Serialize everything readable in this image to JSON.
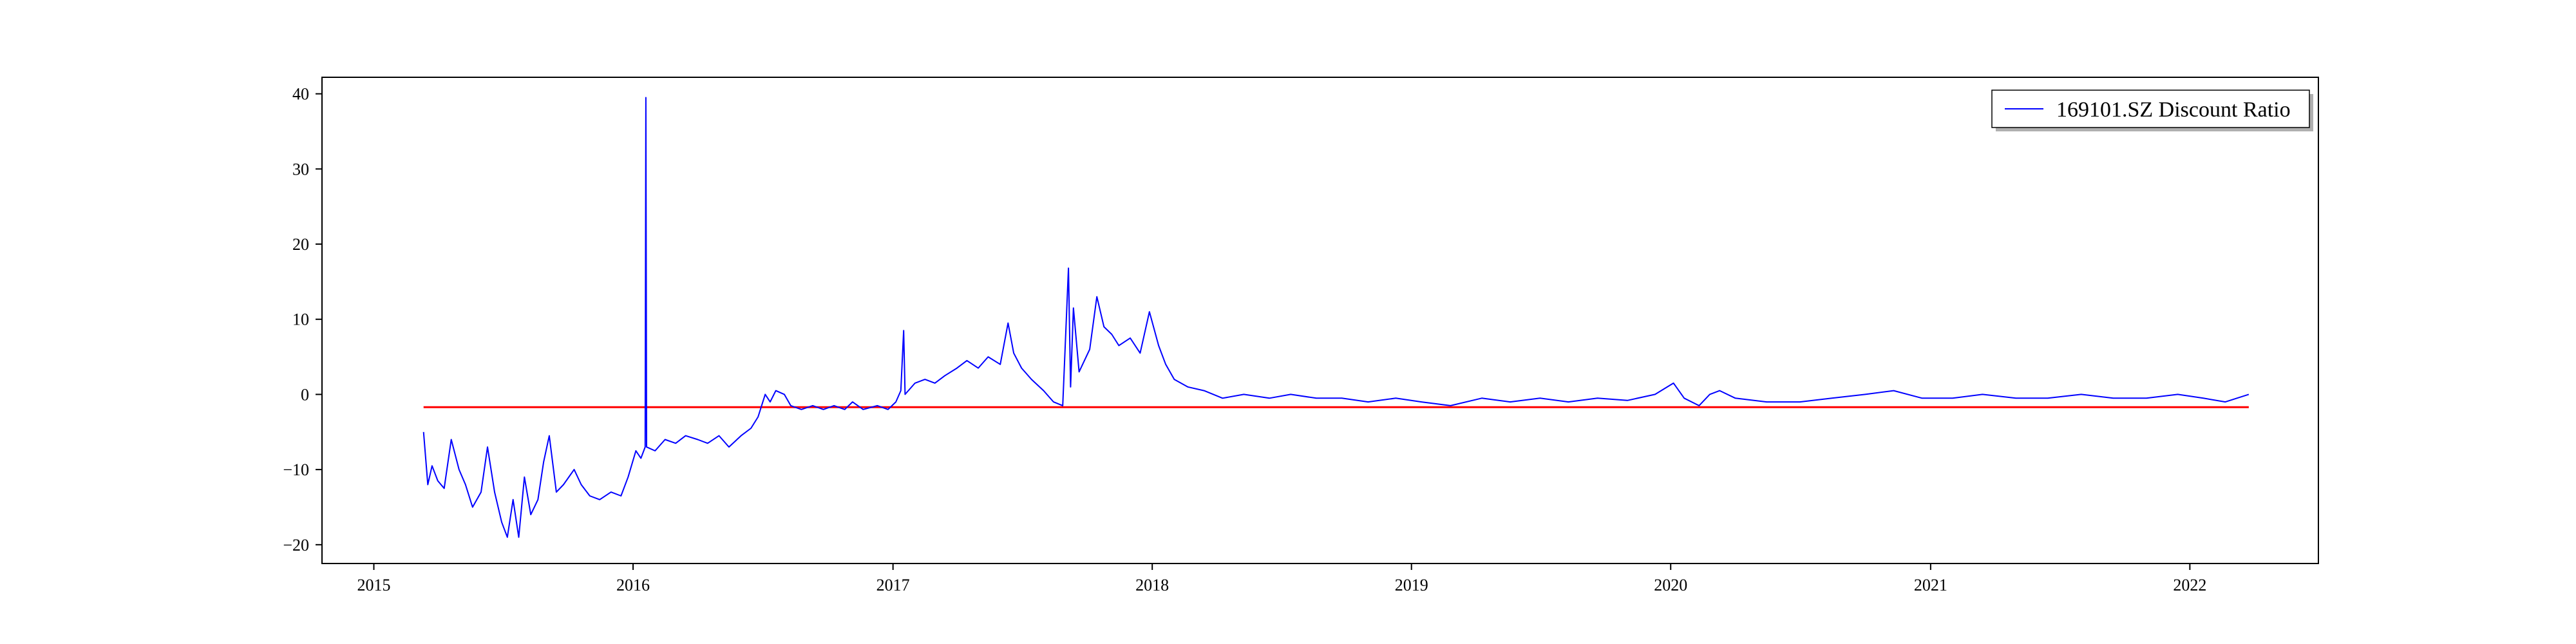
{
  "chart_data": {
    "type": "line",
    "title": "",
    "xlabel": "",
    "ylabel": "",
    "x_range": [
      "2014-10-20",
      "2022-07-01"
    ],
    "ylim": [
      -22.5,
      42.2
    ],
    "x_ticks": [
      "2015",
      "2016",
      "2017",
      "2018",
      "2019",
      "2020",
      "2021",
      "2022"
    ],
    "y_ticks": [
      -20,
      -10,
      0,
      10,
      20,
      30,
      40
    ],
    "grid": false,
    "legend": {
      "position": "top-right",
      "entries": [
        "169101.SZ Discount Ratio"
      ]
    },
    "series": [
      {
        "name": "169101.SZ Discount Ratio",
        "color": "#0000ff",
        "points": [
          [
            "2015-03-12",
            -5.0
          ],
          [
            "2015-03-18",
            -12.0
          ],
          [
            "2015-03-24",
            -9.5
          ],
          [
            "2015-04-01",
            -11.5
          ],
          [
            "2015-04-10",
            -12.5
          ],
          [
            "2015-04-20",
            -6.0
          ],
          [
            "2015-05-01",
            -10.0
          ],
          [
            "2015-05-10",
            -12.0
          ],
          [
            "2015-05-20",
            -15.0
          ],
          [
            "2015-06-01",
            -13.0
          ],
          [
            "2015-06-10",
            -7.0
          ],
          [
            "2015-06-20",
            -13.0
          ],
          [
            "2015-06-30",
            -17.0
          ],
          [
            "2015-07-08",
            -19.0
          ],
          [
            "2015-07-16",
            -14.0
          ],
          [
            "2015-07-24",
            -19.0
          ],
          [
            "2015-08-01",
            -11.0
          ],
          [
            "2015-08-10",
            -16.0
          ],
          [
            "2015-08-20",
            -14.0
          ],
          [
            "2015-08-28",
            -9.0
          ],
          [
            "2015-09-05",
            -5.5
          ],
          [
            "2015-09-15",
            -13.0
          ],
          [
            "2015-09-25",
            -12.0
          ],
          [
            "2015-10-10",
            -10.0
          ],
          [
            "2015-10-20",
            -12.0
          ],
          [
            "2015-11-01",
            -13.5
          ],
          [
            "2015-11-15",
            -14.0
          ],
          [
            "2015-12-01",
            -13.0
          ],
          [
            "2015-12-15",
            -13.5
          ],
          [
            "2015-12-25",
            -11.0
          ],
          [
            "2016-01-05",
            -7.5
          ],
          [
            "2016-01-12",
            -8.5
          ],
          [
            "2016-01-18",
            -7.0
          ],
          [
            "2016-01-19",
            39.5
          ],
          [
            "2016-01-20",
            -7.0
          ],
          [
            "2016-02-01",
            -7.5
          ],
          [
            "2016-02-15",
            -6.0
          ],
          [
            "2016-03-01",
            -6.5
          ],
          [
            "2016-03-15",
            -5.5
          ],
          [
            "2016-04-01",
            -6.0
          ],
          [
            "2016-04-15",
            -6.5
          ],
          [
            "2016-05-01",
            -5.5
          ],
          [
            "2016-05-15",
            -7.0
          ],
          [
            "2016-06-01",
            -5.5
          ],
          [
            "2016-06-15",
            -4.5
          ],
          [
            "2016-06-25",
            -3.0
          ],
          [
            "2016-07-05",
            0.0
          ],
          [
            "2016-07-12",
            -1.0
          ],
          [
            "2016-07-20",
            0.5
          ],
          [
            "2016-08-01",
            0.0
          ],
          [
            "2016-08-10",
            -1.5
          ],
          [
            "2016-08-25",
            -2.0
          ],
          [
            "2016-09-10",
            -1.5
          ],
          [
            "2016-09-25",
            -2.0
          ],
          [
            "2016-10-10",
            -1.5
          ],
          [
            "2016-10-25",
            -2.0
          ],
          [
            "2016-11-05",
            -1.0
          ],
          [
            "2016-11-20",
            -2.0
          ],
          [
            "2016-12-10",
            -1.5
          ],
          [
            "2016-12-25",
            -2.0
          ],
          [
            "2017-01-05",
            -1.0
          ],
          [
            "2017-01-12",
            0.5
          ],
          [
            "2017-01-16",
            8.5
          ],
          [
            "2017-01-18",
            0.0
          ],
          [
            "2017-02-01",
            1.5
          ],
          [
            "2017-02-15",
            2.0
          ],
          [
            "2017-03-01",
            1.5
          ],
          [
            "2017-03-15",
            2.5
          ],
          [
            "2017-04-01",
            3.5
          ],
          [
            "2017-04-15",
            4.5
          ],
          [
            "2017-05-01",
            3.5
          ],
          [
            "2017-05-15",
            5.0
          ],
          [
            "2017-06-01",
            4.0
          ],
          [
            "2017-06-12",
            9.5
          ],
          [
            "2017-06-20",
            5.5
          ],
          [
            "2017-07-01",
            3.5
          ],
          [
            "2017-07-15",
            2.0
          ],
          [
            "2017-08-01",
            0.5
          ],
          [
            "2017-08-15",
            -1.0
          ],
          [
            "2017-08-28",
            -1.5
          ],
          [
            "2017-09-05",
            16.8
          ],
          [
            "2017-09-08",
            1.0
          ],
          [
            "2017-09-12",
            11.5
          ],
          [
            "2017-09-20",
            3.0
          ],
          [
            "2017-10-05",
            6.0
          ],
          [
            "2017-10-15",
            13.0
          ],
          [
            "2017-10-25",
            9.0
          ],
          [
            "2017-11-05",
            8.0
          ],
          [
            "2017-11-15",
            6.5
          ],
          [
            "2017-12-01",
            7.5
          ],
          [
            "2017-12-15",
            5.5
          ],
          [
            "2017-12-28",
            11.0
          ],
          [
            "2018-01-10",
            6.5
          ],
          [
            "2018-01-20",
            4.0
          ],
          [
            "2018-02-01",
            2.0
          ],
          [
            "2018-02-20",
            1.0
          ],
          [
            "2018-03-15",
            0.5
          ],
          [
            "2018-04-10",
            -0.5
          ],
          [
            "2018-05-10",
            0.0
          ],
          [
            "2018-06-15",
            -0.5
          ],
          [
            "2018-07-15",
            0.0
          ],
          [
            "2018-08-20",
            -0.5
          ],
          [
            "2018-09-25",
            -0.5
          ],
          [
            "2018-11-01",
            -1.0
          ],
          [
            "2018-12-10",
            -0.5
          ],
          [
            "2019-01-15",
            -1.0
          ],
          [
            "2019-02-25",
            -1.5
          ],
          [
            "2019-04-10",
            -0.5
          ],
          [
            "2019-05-20",
            -1.0
          ],
          [
            "2019-07-01",
            -0.5
          ],
          [
            "2019-08-10",
            -1.0
          ],
          [
            "2019-09-20",
            -0.5
          ],
          [
            "2019-11-01",
            -0.8
          ],
          [
            "2019-12-10",
            0.0
          ],
          [
            "2020-01-05",
            1.5
          ],
          [
            "2020-01-20",
            -0.5
          ],
          [
            "2020-02-10",
            -1.5
          ],
          [
            "2020-02-25",
            0.0
          ],
          [
            "2020-03-10",
            0.5
          ],
          [
            "2020-04-01",
            -0.5
          ],
          [
            "2020-05-15",
            -1.0
          ],
          [
            "2020-07-01",
            -1.0
          ],
          [
            "2020-08-15",
            -0.5
          ],
          [
            "2020-10-01",
            0.0
          ],
          [
            "2020-11-10",
            0.5
          ],
          [
            "2020-12-20",
            -0.5
          ],
          [
            "2021-02-01",
            -0.5
          ],
          [
            "2021-03-15",
            0.0
          ],
          [
            "2021-05-01",
            -0.5
          ],
          [
            "2021-06-15",
            -0.5
          ],
          [
            "2021-08-01",
            0.0
          ],
          [
            "2021-09-15",
            -0.5
          ],
          [
            "2021-11-01",
            -0.5
          ],
          [
            "2021-12-15",
            0.0
          ],
          [
            "2022-01-20",
            -0.5
          ],
          [
            "2022-02-20",
            -1.0
          ],
          [
            "2022-03-25",
            0.0
          ]
        ]
      },
      {
        "name": "",
        "color": "#ff0000",
        "points": [
          [
            "2015-03-12",
            -1.7
          ],
          [
            "2022-03-25",
            -1.7
          ]
        ]
      }
    ]
  }
}
